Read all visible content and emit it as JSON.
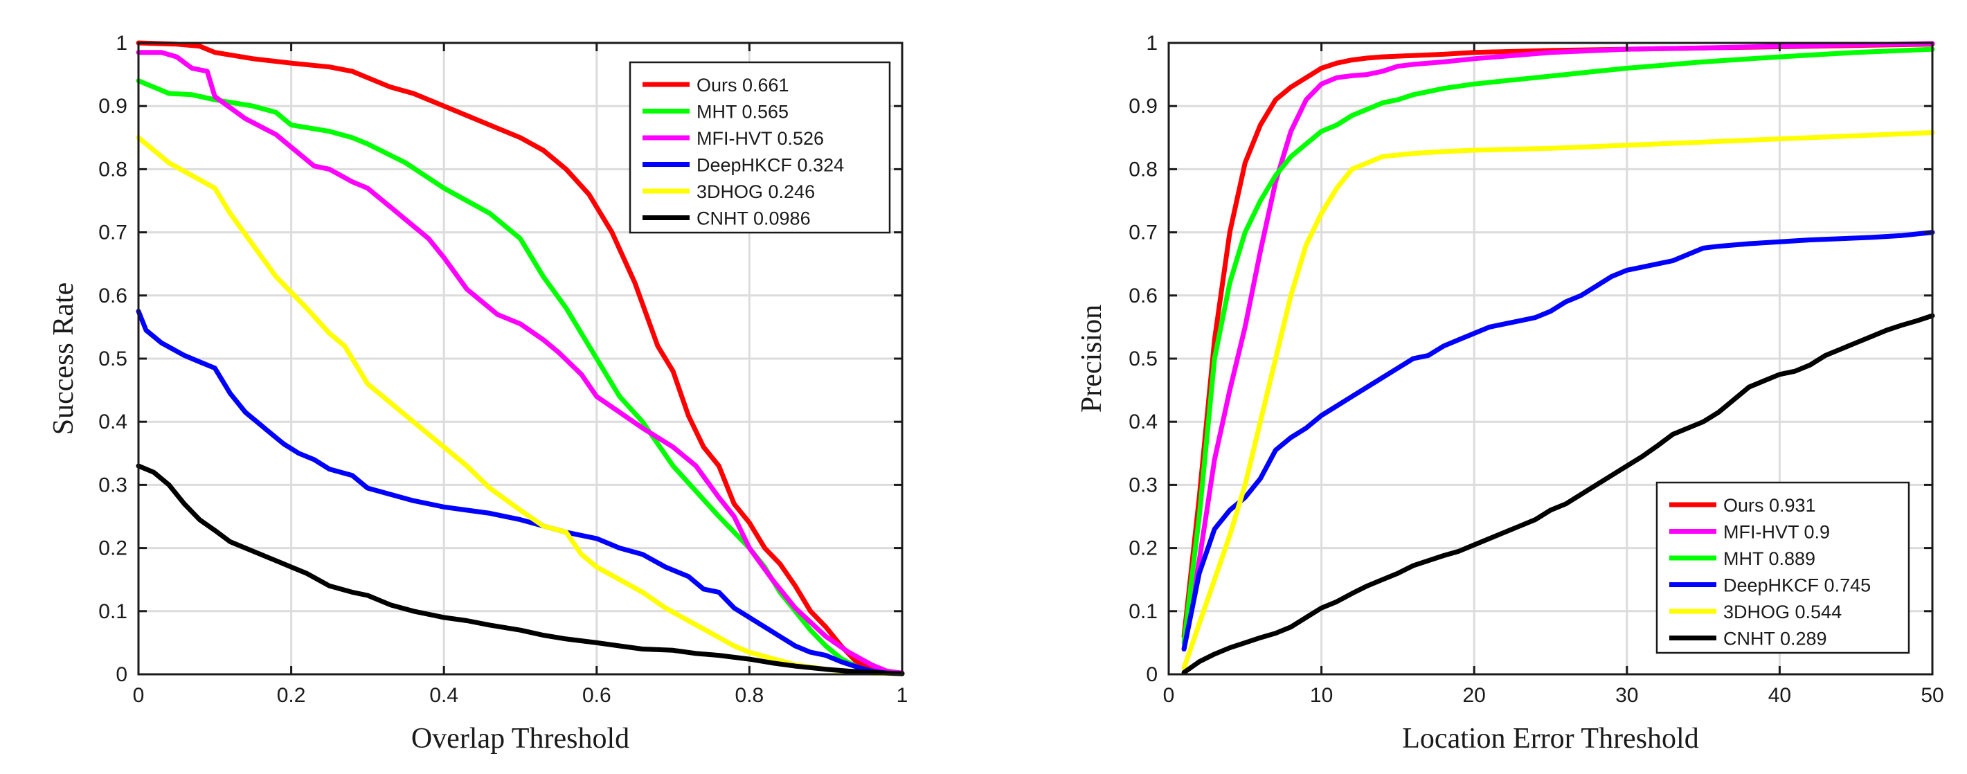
{
  "chart_data": [
    {
      "type": "line",
      "xlabel": "Overlap Threshold",
      "ylabel": "Success Rate",
      "xlim": [
        0,
        1
      ],
      "ylim": [
        0,
        1
      ],
      "xticks": [
        0,
        0.2,
        0.4,
        0.6,
        0.8,
        1
      ],
      "xtick_labels": [
        "0",
        "0.2",
        "0.4",
        "0.6",
        "0.8",
        "1"
      ],
      "yticks": [
        0,
        0.1,
        0.2,
        0.3,
        0.4,
        0.5,
        0.6,
        0.7,
        0.8,
        0.9,
        1
      ],
      "ytick_labels": [
        "0",
        "0.1",
        "0.2",
        "0.3",
        "0.4",
        "0.5",
        "0.6",
        "0.7",
        "0.8",
        "0.9",
        "1"
      ],
      "grid": true,
      "legend_position": "top-right",
      "series": [
        {
          "name": "Ours",
          "score": "0.661",
          "color": "#ff0000",
          "x": [
            0,
            0.05,
            0.08,
            0.1,
            0.15,
            0.2,
            0.25,
            0.28,
            0.3,
            0.33,
            0.36,
            0.4,
            0.43,
            0.46,
            0.5,
            0.53,
            0.56,
            0.59,
            0.62,
            0.65,
            0.68,
            0.7,
            0.72,
            0.74,
            0.76,
            0.78,
            0.8,
            0.82,
            0.84,
            0.86,
            0.88,
            0.9,
            0.92,
            0.94,
            0.96,
            0.98,
            1
          ],
          "y": [
            1.0,
            0.998,
            0.995,
            0.985,
            0.975,
            0.968,
            0.962,
            0.955,
            0.945,
            0.93,
            0.92,
            0.9,
            0.885,
            0.87,
            0.85,
            0.83,
            0.8,
            0.76,
            0.7,
            0.62,
            0.52,
            0.48,
            0.41,
            0.36,
            0.33,
            0.27,
            0.24,
            0.2,
            0.175,
            0.14,
            0.1,
            0.075,
            0.045,
            0.02,
            0.008,
            0.003,
            0.001
          ]
        },
        {
          "name": "MHT",
          "score": "0.565",
          "color": "#00ff00",
          "x": [
            0,
            0.02,
            0.04,
            0.07,
            0.1,
            0.15,
            0.18,
            0.2,
            0.25,
            0.28,
            0.3,
            0.35,
            0.4,
            0.43,
            0.46,
            0.5,
            0.53,
            0.56,
            0.6,
            0.63,
            0.66,
            0.7,
            0.73,
            0.76,
            0.8,
            0.82,
            0.84,
            0.86,
            0.88,
            0.9,
            0.92,
            0.94,
            0.96,
            0.98,
            1
          ],
          "y": [
            0.94,
            0.93,
            0.92,
            0.918,
            0.91,
            0.9,
            0.89,
            0.87,
            0.86,
            0.85,
            0.84,
            0.81,
            0.77,
            0.75,
            0.73,
            0.69,
            0.63,
            0.58,
            0.5,
            0.44,
            0.4,
            0.33,
            0.29,
            0.25,
            0.2,
            0.17,
            0.13,
            0.1,
            0.07,
            0.045,
            0.025,
            0.012,
            0.005,
            0.002,
            0.001
          ]
        },
        {
          "name": "MFI-HVT",
          "score": "0.526",
          "color": "#ff00ff",
          "x": [
            0,
            0.03,
            0.05,
            0.07,
            0.09,
            0.1,
            0.14,
            0.18,
            0.2,
            0.23,
            0.25,
            0.28,
            0.3,
            0.33,
            0.36,
            0.38,
            0.4,
            0.43,
            0.45,
            0.47,
            0.5,
            0.53,
            0.55,
            0.58,
            0.6,
            0.63,
            0.66,
            0.7,
            0.73,
            0.76,
            0.78,
            0.8,
            0.83,
            0.86,
            0.9,
            0.93,
            0.96,
            0.98,
            1
          ],
          "y": [
            0.985,
            0.985,
            0.978,
            0.96,
            0.955,
            0.915,
            0.88,
            0.855,
            0.835,
            0.805,
            0.8,
            0.78,
            0.77,
            0.74,
            0.71,
            0.69,
            0.66,
            0.61,
            0.59,
            0.57,
            0.555,
            0.53,
            0.51,
            0.475,
            0.44,
            0.415,
            0.39,
            0.36,
            0.33,
            0.28,
            0.25,
            0.2,
            0.15,
            0.105,
            0.06,
            0.035,
            0.015,
            0.005,
            0.002
          ]
        },
        {
          "name": "DeepHKCF",
          "score": "0.324",
          "color": "#0000ff",
          "x": [
            0,
            0.01,
            0.03,
            0.06,
            0.08,
            0.1,
            0.12,
            0.14,
            0.17,
            0.19,
            0.21,
            0.23,
            0.25,
            0.28,
            0.3,
            0.33,
            0.36,
            0.4,
            0.43,
            0.46,
            0.5,
            0.53,
            0.56,
            0.6,
            0.63,
            0.66,
            0.69,
            0.72,
            0.74,
            0.76,
            0.78,
            0.8,
            0.82,
            0.84,
            0.86,
            0.88,
            0.9,
            0.92,
            0.94,
            0.96,
            0.98,
            1
          ],
          "y": [
            0.575,
            0.545,
            0.525,
            0.505,
            0.495,
            0.485,
            0.445,
            0.415,
            0.385,
            0.365,
            0.35,
            0.34,
            0.325,
            0.315,
            0.295,
            0.285,
            0.275,
            0.265,
            0.26,
            0.255,
            0.245,
            0.235,
            0.225,
            0.215,
            0.2,
            0.19,
            0.17,
            0.155,
            0.135,
            0.13,
            0.105,
            0.09,
            0.075,
            0.06,
            0.045,
            0.035,
            0.03,
            0.02,
            0.012,
            0.005,
            0.002,
            0.001
          ]
        },
        {
          "name": "3DHOG",
          "score": "0.246",
          "color": "#ffff00",
          "x": [
            0,
            0.02,
            0.04,
            0.07,
            0.1,
            0.12,
            0.15,
            0.18,
            0.2,
            0.22,
            0.25,
            0.27,
            0.3,
            0.32,
            0.35,
            0.37,
            0.4,
            0.43,
            0.46,
            0.5,
            0.53,
            0.56,
            0.58,
            0.6,
            0.63,
            0.66,
            0.69,
            0.72,
            0.75,
            0.78,
            0.8,
            0.83,
            0.86,
            0.9,
            0.93,
            0.96,
            1
          ],
          "y": [
            0.85,
            0.83,
            0.81,
            0.79,
            0.77,
            0.73,
            0.68,
            0.63,
            0.605,
            0.58,
            0.54,
            0.52,
            0.46,
            0.44,
            0.41,
            0.39,
            0.36,
            0.33,
            0.295,
            0.26,
            0.235,
            0.225,
            0.19,
            0.17,
            0.15,
            0.13,
            0.105,
            0.085,
            0.065,
            0.045,
            0.035,
            0.025,
            0.015,
            0.008,
            0.004,
            0.002,
            0.001
          ]
        },
        {
          "name": "CNHT",
          "score": "0.0986",
          "color": "#000000",
          "x": [
            0,
            0.02,
            0.04,
            0.06,
            0.08,
            0.1,
            0.12,
            0.15,
            0.18,
            0.2,
            0.22,
            0.25,
            0.28,
            0.3,
            0.33,
            0.36,
            0.4,
            0.43,
            0.46,
            0.5,
            0.53,
            0.56,
            0.6,
            0.63,
            0.66,
            0.7,
            0.73,
            0.76,
            0.8,
            0.83,
            0.86,
            0.9,
            0.93,
            0.96,
            1
          ],
          "y": [
            0.33,
            0.32,
            0.3,
            0.27,
            0.245,
            0.228,
            0.21,
            0.195,
            0.18,
            0.17,
            0.16,
            0.14,
            0.13,
            0.125,
            0.11,
            0.1,
            0.09,
            0.085,
            0.078,
            0.07,
            0.062,
            0.056,
            0.05,
            0.045,
            0.04,
            0.038,
            0.033,
            0.03,
            0.024,
            0.018,
            0.013,
            0.008,
            0.005,
            0.003,
            0.001
          ]
        }
      ]
    },
    {
      "type": "line",
      "xlabel": "Location Error Threshold",
      "ylabel": "Precision",
      "xlim": [
        0,
        50
      ],
      "ylim": [
        0,
        1
      ],
      "xticks": [
        0,
        10,
        20,
        30,
        40,
        50
      ],
      "xtick_labels": [
        "0",
        "10",
        "20",
        "30",
        "40",
        "50"
      ],
      "yticks": [
        0,
        0.1,
        0.2,
        0.3,
        0.4,
        0.5,
        0.6,
        0.7,
        0.8,
        0.9,
        1
      ],
      "ytick_labels": [
        "0",
        "0.1",
        "0.2",
        "0.3",
        "0.4",
        "0.5",
        "0.6",
        "0.7",
        "0.8",
        "0.9",
        "1"
      ],
      "grid": true,
      "legend_position": "bottom-right",
      "series": [
        {
          "name": "Ours",
          "score": "0.931",
          "color": "#ff0000",
          "x": [
            1,
            2,
            3,
            4,
            5,
            6,
            7,
            8,
            9,
            10,
            11,
            12,
            13,
            14,
            16,
            18,
            20,
            25,
            30,
            35,
            40,
            45,
            50
          ],
          "y": [
            0.06,
            0.28,
            0.53,
            0.7,
            0.81,
            0.87,
            0.91,
            0.93,
            0.945,
            0.96,
            0.968,
            0.973,
            0.976,
            0.978,
            0.98,
            0.982,
            0.985,
            0.988,
            0.99,
            0.992,
            0.994,
            0.996,
            0.998
          ]
        },
        {
          "name": "MFI-HVT",
          "score": "0.9",
          "color": "#ff00ff",
          "x": [
            1,
            2,
            3,
            4,
            5,
            6,
            7,
            8,
            9,
            10,
            11,
            12,
            13,
            14,
            15,
            16,
            18,
            20,
            25,
            30,
            35,
            40,
            45,
            50
          ],
          "y": [
            0.04,
            0.18,
            0.34,
            0.45,
            0.55,
            0.67,
            0.78,
            0.86,
            0.91,
            0.935,
            0.945,
            0.948,
            0.95,
            0.955,
            0.963,
            0.966,
            0.97,
            0.975,
            0.985,
            0.99,
            0.992,
            0.995,
            0.997,
            0.999
          ]
        },
        {
          "name": "MHT",
          "score": "0.889",
          "color": "#00ff00",
          "x": [
            1,
            2,
            3,
            4,
            5,
            6,
            7,
            8,
            9,
            10,
            11,
            12,
            13,
            14,
            15,
            16,
            18,
            20,
            22,
            24,
            26,
            28,
            30,
            35,
            40,
            45,
            50
          ],
          "y": [
            0.05,
            0.25,
            0.5,
            0.62,
            0.7,
            0.75,
            0.79,
            0.82,
            0.84,
            0.86,
            0.87,
            0.885,
            0.895,
            0.905,
            0.91,
            0.918,
            0.928,
            0.935,
            0.94,
            0.945,
            0.95,
            0.955,
            0.96,
            0.97,
            0.978,
            0.985,
            0.99
          ]
        },
        {
          "name": "DeepHKCF",
          "score": "0.745",
          "color": "#0000ff",
          "x": [
            1,
            2,
            3,
            4,
            5,
            6,
            7,
            8,
            9,
            10,
            11,
            12,
            13,
            14,
            15,
            16,
            17,
            18,
            19,
            20,
            21,
            22,
            23,
            24,
            25,
            26,
            27,
            28,
            29,
            30,
            31,
            32,
            33,
            34,
            35,
            36,
            38,
            40,
            42,
            44,
            46,
            48,
            50
          ],
          "y": [
            0.04,
            0.16,
            0.23,
            0.26,
            0.28,
            0.31,
            0.355,
            0.375,
            0.39,
            0.41,
            0.425,
            0.44,
            0.455,
            0.47,
            0.485,
            0.5,
            0.505,
            0.52,
            0.53,
            0.54,
            0.55,
            0.555,
            0.56,
            0.565,
            0.575,
            0.59,
            0.6,
            0.615,
            0.63,
            0.64,
            0.645,
            0.65,
            0.655,
            0.665,
            0.675,
            0.678,
            0.682,
            0.685,
            0.688,
            0.69,
            0.692,
            0.695,
            0.7
          ]
        },
        {
          "name": "3DHOG",
          "score": "0.544",
          "color": "#ffff00",
          "x": [
            1,
            2,
            3,
            4,
            5,
            6,
            7,
            8,
            9,
            10,
            11,
            12,
            13,
            14,
            16,
            18,
            20,
            25,
            30,
            35,
            40,
            45,
            50
          ],
          "y": [
            0.01,
            0.08,
            0.15,
            0.22,
            0.3,
            0.4,
            0.5,
            0.6,
            0.68,
            0.73,
            0.77,
            0.8,
            0.81,
            0.82,
            0.825,
            0.828,
            0.83,
            0.833,
            0.838,
            0.843,
            0.848,
            0.853,
            0.858
          ]
        },
        {
          "name": "CNHT",
          "score": "0.289",
          "color": "#000000",
          "x": [
            1,
            2,
            3,
            4,
            5,
            6,
            7,
            8,
            9,
            10,
            11,
            12,
            13,
            14,
            15,
            16,
            17,
            18,
            19,
            20,
            21,
            22,
            23,
            24,
            25,
            26,
            27,
            28,
            29,
            30,
            31,
            32,
            33,
            34,
            35,
            36,
            37,
            38,
            39,
            40,
            41,
            42,
            43,
            44,
            45,
            46,
            47,
            48,
            49,
            50
          ],
          "y": [
            0.003,
            0.02,
            0.032,
            0.042,
            0.05,
            0.058,
            0.065,
            0.075,
            0.09,
            0.105,
            0.115,
            0.128,
            0.14,
            0.15,
            0.16,
            0.172,
            0.18,
            0.188,
            0.195,
            0.205,
            0.215,
            0.225,
            0.235,
            0.245,
            0.26,
            0.27,
            0.285,
            0.3,
            0.315,
            0.33,
            0.345,
            0.362,
            0.38,
            0.39,
            0.4,
            0.415,
            0.435,
            0.455,
            0.465,
            0.475,
            0.48,
            0.49,
            0.505,
            0.515,
            0.525,
            0.535,
            0.545,
            0.553,
            0.56,
            0.568
          ]
        }
      ]
    }
  ]
}
